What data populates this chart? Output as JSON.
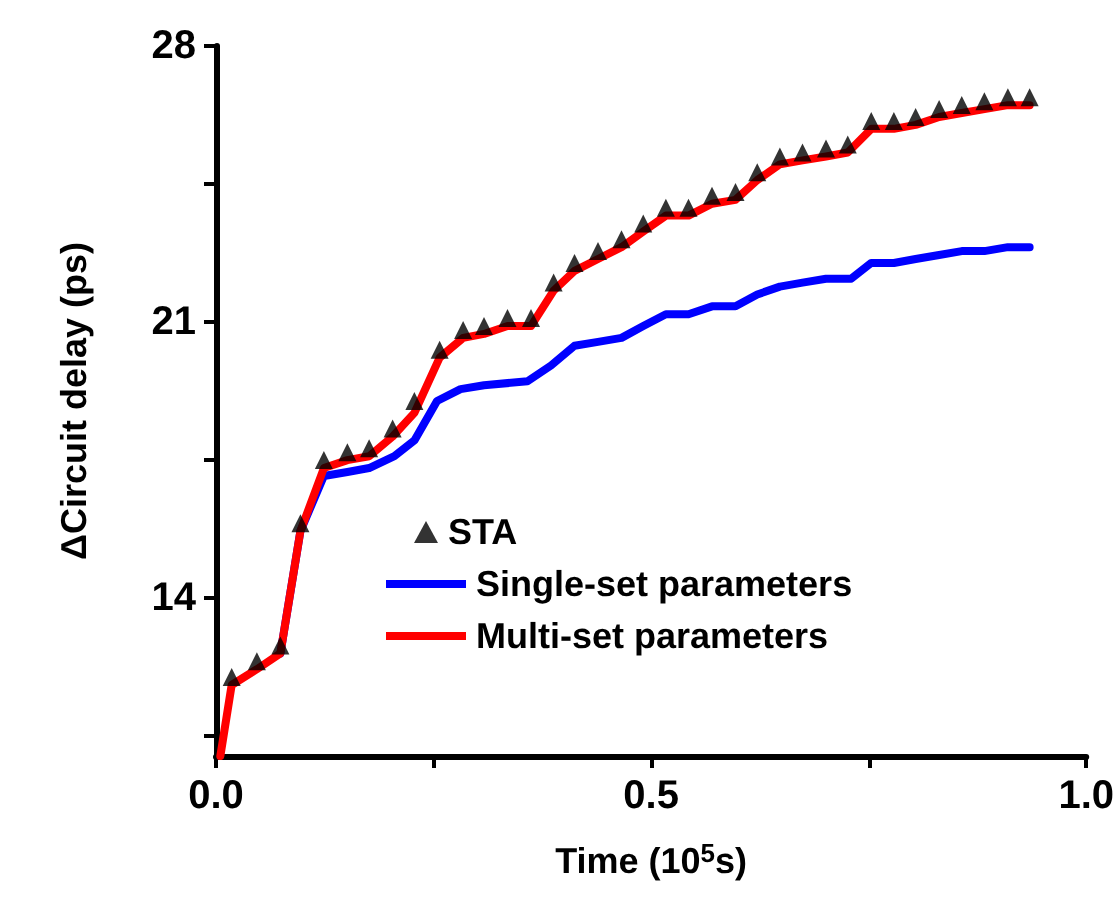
{
  "chart_data": {
    "type": "line",
    "xlabel": "Time (10$^{5}$s)",
    "ylabel": "ΔCircuit delay (ps)",
    "xlim": [
      0,
      1
    ],
    "xticks": [
      {
        "value": 0,
        "label": "0.0"
      },
      {
        "value": 0.25,
        "label": null
      },
      {
        "value": 0.5,
        "label": "0.5"
      },
      {
        "value": 0.75,
        "label": null
      },
      {
        "value": 1,
        "label": "1.0"
      }
    ],
    "ylim": [
      10,
      28
    ],
    "yticks": [
      {
        "value": 10.5,
        "label": null
      },
      14,
      {
        "value": 17.5,
        "label": null
      },
      21,
      {
        "value": 24.5,
        "label": null
      },
      28
    ],
    "grid": false,
    "legend": "bottom right",
    "series": [
      {
        "name": "STA",
        "type": "scatter",
        "marker": "triangle",
        "color": "#000000",
        "x": [
          0.018,
          0.047,
          0.074,
          0.097,
          0.124,
          0.151,
          0.176,
          0.203,
          0.228,
          0.257,
          0.284,
          0.308,
          0.335,
          0.362,
          0.388,
          0.412,
          0.439,
          0.466,
          0.491,
          0.517,
          0.543,
          0.57,
          0.597,
          0.622,
          0.648,
          0.674,
          0.701,
          0.726,
          0.753,
          0.779,
          0.804,
          0.831,
          0.857,
          0.883,
          0.91,
          0.935
        ],
        "values": [
          11.9,
          12.3,
          12.7,
          15.8,
          17.4,
          17.6,
          17.7,
          18.2,
          18.9,
          20.2,
          20.7,
          20.8,
          21.0,
          21.0,
          21.9,
          22.4,
          22.7,
          23.0,
          23.4,
          23.8,
          23.8,
          24.1,
          24.2,
          24.7,
          25.1,
          25.2,
          25.3,
          25.4,
          26.0,
          26.0,
          26.1,
          26.3,
          26.4,
          26.5,
          26.6,
          26.6
        ]
      },
      {
        "name": "Single-set parameters",
        "type": "line",
        "marker": "none",
        "color": "#0000ff",
        "x": [
          0.074,
          0.097,
          0.124,
          0.151,
          0.176,
          0.205,
          0.228,
          0.254,
          0.281,
          0.308,
          0.358,
          0.385,
          0.412,
          0.439,
          0.466,
          0.491,
          0.517,
          0.543,
          0.57,
          0.597,
          0.622,
          0.648,
          0.674,
          0.701,
          0.73,
          0.753,
          0.779,
          0.804,
          0.831,
          0.857,
          0.883,
          0.91,
          0.935
        ],
        "values": [
          12.6,
          15.7,
          17.1,
          17.2,
          17.3,
          17.6,
          18.0,
          19.0,
          19.3,
          19.4,
          19.5,
          19.9,
          20.4,
          20.5,
          20.6,
          20.9,
          21.2,
          21.2,
          21.4,
          21.4,
          21.7,
          21.9,
          22.0,
          22.1,
          22.1,
          22.5,
          22.5,
          22.6,
          22.7,
          22.8,
          22.8,
          22.9,
          22.9
        ]
      },
      {
        "name": "Multi-set parameters",
        "type": "line",
        "marker": "none",
        "color": "#ff0000",
        "x": [
          0.005,
          0.018,
          0.047,
          0.074,
          0.097,
          0.124,
          0.151,
          0.176,
          0.203,
          0.228,
          0.257,
          0.284,
          0.308,
          0.335,
          0.362,
          0.388,
          0.412,
          0.439,
          0.466,
          0.491,
          0.517,
          0.543,
          0.57,
          0.597,
          0.622,
          0.648,
          0.674,
          0.701,
          0.726,
          0.753,
          0.779,
          0.804,
          0.831,
          0.857,
          0.883,
          0.91,
          0.935
        ],
        "values": [
          10,
          11.8,
          12.2,
          12.6,
          15.7,
          17.3,
          17.5,
          17.6,
          18.1,
          18.7,
          20.1,
          20.6,
          20.7,
          20.9,
          20.9,
          21.8,
          22.3,
          22.6,
          22.9,
          23.3,
          23.7,
          23.7,
          24.0,
          24.1,
          24.6,
          25.0,
          25.1,
          25.2,
          25.3,
          25.9,
          25.9,
          26.0,
          26.2,
          26.3,
          26.4,
          26.5,
          26.5
        ]
      }
    ]
  }
}
